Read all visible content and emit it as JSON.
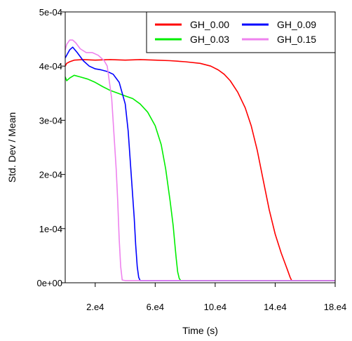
{
  "chart_data": {
    "type": "line",
    "xlabel": "Time (s)",
    "ylabel": "Std. Dev / Mean",
    "xlim": [
      0,
      180000
    ],
    "ylim": [
      0,
      0.0005
    ],
    "x_ticks": [
      {
        "value": 20000,
        "label": "2.e4"
      },
      {
        "value": 60000,
        "label": "6.e4"
      },
      {
        "value": 100000,
        "label": "10.e4"
      },
      {
        "value": 140000,
        "label": "14.e4"
      },
      {
        "value": 180000,
        "label": "18.e4"
      }
    ],
    "y_ticks": [
      {
        "value": 0,
        "label": "0e+00"
      },
      {
        "value": 0.0001,
        "label": "1e-04"
      },
      {
        "value": 0.0002,
        "label": "2e-04"
      },
      {
        "value": 0.0003,
        "label": "3e-04"
      },
      {
        "value": 0.0004,
        "label": "4e-04"
      },
      {
        "value": 0.0005,
        "label": "5e-04"
      }
    ],
    "grid": false,
    "legend_position": "top-right",
    "series": [
      {
        "name": "GH_0.00",
        "color": "#ff0000",
        "x": [
          0,
          1000,
          3000,
          6000,
          12000,
          20000,
          30000,
          40000,
          50000,
          60000,
          70000,
          80000,
          90000,
          97000,
          102000,
          106000,
          110000,
          115000,
          120000,
          124000,
          128000,
          132000,
          136000,
          140000,
          144000,
          148000,
          150000,
          151000,
          160000,
          180000
        ],
        "y": [
          0.0004,
          0.000405,
          0.000408,
          0.000411,
          0.000412,
          0.000411,
          0.000412,
          0.000411,
          0.000412,
          0.000411,
          0.00041,
          0.000408,
          0.000405,
          0.0004,
          0.000393,
          0.000385,
          0.000373,
          0.000352,
          0.000323,
          0.00029,
          0.000245,
          0.00019,
          0.000135,
          9e-05,
          5.5e-05,
          2.5e-05,
          1e-05,
          4e-06,
          4e-06,
          4e-06
        ]
      },
      {
        "name": "GH_0.03",
        "color": "#00ee00",
        "x": [
          0,
          1000,
          3000,
          6000,
          10000,
          15000,
          20000,
          25000,
          30000,
          35000,
          40000,
          45000,
          50000,
          55000,
          60000,
          64000,
          67000,
          70000,
          72000,
          73000,
          74000,
          75000,
          76000,
          77000,
          79000,
          180000
        ],
        "y": [
          0.00038,
          0.000373,
          0.000378,
          0.000383,
          0.00038,
          0.000376,
          0.00037,
          0.000362,
          0.000355,
          0.00035,
          0.000345,
          0.00034,
          0.00033,
          0.000315,
          0.00029,
          0.000255,
          0.00021,
          0.00015,
          0.000105,
          7.5e-05,
          4.5e-05,
          2e-05,
          8e-06,
          4e-06,
          4e-06,
          4e-06
        ]
      },
      {
        "name": "GH_0.09",
        "color": "#0000ff",
        "x": [
          0,
          1000,
          3000,
          5000,
          8000,
          12000,
          16000,
          20000,
          24000,
          28000,
          32000,
          36000,
          40000,
          42000,
          44000,
          46000,
          47000,
          48000,
          49000,
          50000,
          180000
        ],
        "y": [
          0.000415,
          0.00042,
          0.00043,
          0.000435,
          0.000425,
          0.00041,
          0.0004,
          0.000395,
          0.000393,
          0.00039,
          0.000385,
          0.00037,
          0.00033,
          0.00028,
          0.0002,
          0.00012,
          7e-05,
          3e-05,
          1e-05,
          4e-06,
          4e-06
        ]
      },
      {
        "name": "GH_0.15",
        "color": "#ee82ee",
        "x": [
          0,
          1000,
          3000,
          5000,
          7000,
          10000,
          14000,
          18000,
          22000,
          26000,
          28000,
          31000,
          34000,
          35000,
          36000,
          37000,
          38000,
          40000,
          180000
        ],
        "y": [
          0.00043,
          0.00044,
          0.000448,
          0.000448,
          0.000443,
          0.000432,
          0.000425,
          0.000425,
          0.00042,
          0.00041,
          0.0004,
          0.00034,
          0.00021,
          0.00015,
          8e-05,
          3e-05,
          5e-06,
          4e-06,
          4e-06
        ]
      }
    ]
  }
}
